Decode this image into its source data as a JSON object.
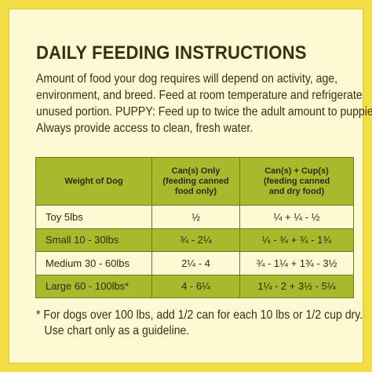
{
  "heading": "DAILY FEEDING INSTRUCTIONS",
  "intro_lines": [
    "Amount of food your dog requires will depend on activity, age,",
    "environment, and breed.  Feed at room temperature and refrigerate",
    "unused portion.  PUPPY: Feed up to twice the adult amount to puppies.",
    "Always provide access to clean, fresh water."
  ],
  "table": {
    "headers": [
      {
        "lines": [
          "Weight of Dog"
        ]
      },
      {
        "lines": [
          "Can(s) Only",
          "(feeding canned",
          "food only)"
        ]
      },
      {
        "lines": [
          "Can(s) + Cup(s)",
          "(feeding canned",
          "and dry food)"
        ]
      }
    ],
    "rows": [
      {
        "weight": "Toy 5lbs",
        "cans_only": "½",
        "cans_cups": "¼ + ¼ - ½"
      },
      {
        "weight": "Small 10 - 30lbs",
        "cans_only": "¾ - 2¼",
        "cans_cups": "¼ - ¾ + ¾ - 1¾"
      },
      {
        "weight": "Medium 30 - 60lbs",
        "cans_only": "2¼ - 4",
        "cans_cups": "¾ - 1¼ + 1¾ - 3½"
      },
      {
        "weight": "Large 60 - 100lbs*",
        "cans_only": "4 - 6¼",
        "cans_cups": "1¼ - 2 + 3½ - 5¼"
      }
    ]
  },
  "footnote_lines": [
    "* For dogs over 100 lbs, add 1/2 can for each 10 lbs or 1/2 cup dry.",
    "Use chart only as a guideline."
  ],
  "colors": {
    "border": "#f2df45",
    "background": "#fdf9d2",
    "table_green": "#a7ba2c",
    "text": "#3a2f16"
  }
}
